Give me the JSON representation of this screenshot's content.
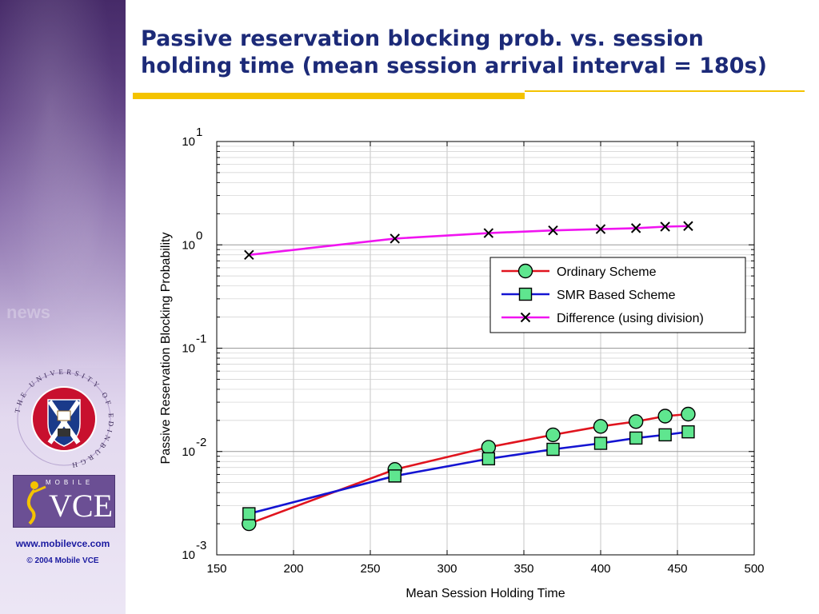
{
  "slide": {
    "title_line1": "Passive reservation blocking prob. vs. session",
    "title_line2": "holding time (mean session arrival interval = 180s)",
    "website": "www.mobilevce.com",
    "copyright": "© 2004 Mobile VCE",
    "sidebar_watermark": "news",
    "logo_mobile": "MOBILE",
    "logo_vce": "VCE",
    "crest_text": "THE UNIVERSITY OF EDINBURGH",
    "colors": {
      "title": "#1c2a78",
      "accent_rule": "#f4c300",
      "sidebar": "#7a5aa0",
      "footer_text": "#1a1aa0"
    }
  },
  "chart_data": {
    "type": "line",
    "title": "",
    "xlabel": "Mean Session Holding Time",
    "ylabel": "Passive Reservation Blocking Probability",
    "xlim": [
      150,
      500
    ],
    "ylim": [
      0.001,
      10
    ],
    "yscale": "log",
    "grid": true,
    "legend_position": "right, upper-middle",
    "x_ticks": [
      "150",
      "200",
      "250",
      "300",
      "350",
      "400",
      "450",
      "500"
    ],
    "y_ticks": [
      {
        "base": "10",
        "exp": "-3"
      },
      {
        "base": "10",
        "exp": "-2"
      },
      {
        "base": "10",
        "exp": "-1"
      },
      {
        "base": "10",
        "exp": "0"
      },
      {
        "base": "10",
        "exp": "1"
      }
    ],
    "series": [
      {
        "name": "Ordinary Scheme",
        "color": "#e0141e",
        "marker": "circle",
        "x": [
          171,
          266,
          327,
          369,
          400,
          423,
          442,
          457
        ],
        "y": [
          0.002,
          0.0067,
          0.011,
          0.0145,
          0.0175,
          0.0195,
          0.022,
          0.023
        ]
      },
      {
        "name": "SMR Based Scheme",
        "color": "#1414d2",
        "marker": "square",
        "x": [
          171,
          266,
          327,
          369,
          400,
          423,
          442,
          457
        ],
        "y": [
          0.0025,
          0.0058,
          0.0085,
          0.0105,
          0.012,
          0.0135,
          0.0145,
          0.0155
        ]
      },
      {
        "name": "Difference (using division)",
        "color": "#f014f0",
        "marker": "x",
        "x": [
          171,
          266,
          327,
          369,
          400,
          423,
          442,
          457
        ],
        "y": [
          0.8,
          1.15,
          1.3,
          1.38,
          1.42,
          1.45,
          1.5,
          1.52
        ]
      }
    ]
  }
}
